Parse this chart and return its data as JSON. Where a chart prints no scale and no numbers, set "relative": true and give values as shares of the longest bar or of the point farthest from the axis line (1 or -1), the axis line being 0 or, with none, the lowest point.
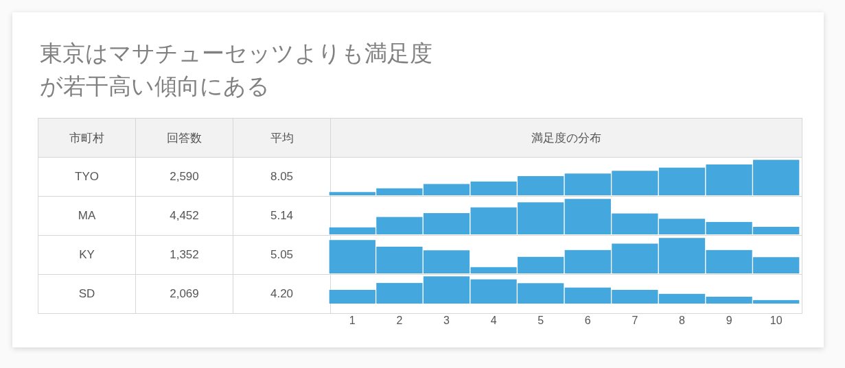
{
  "chart_data": [
    {
      "type": "other",
      "title": "東京はマサチューセッツよりも満足度が若干高い傾向にある",
      "annotations": [
        "市町村",
        "回答数",
        "平均",
        "満足度の分布",
        "TYO",
        "2,590",
        "8.05",
        "MA",
        "4,452",
        "5.14",
        "KY",
        "1,352",
        "5.05",
        "SD",
        "2,069",
        "4.20"
      ]
    },
    {
      "type": "bar",
      "relative": true,
      "tick_labels": false,
      "categories": [
        "1",
        "2",
        "3",
        "4",
        "5",
        "6",
        "7",
        "8",
        "9",
        "10"
      ],
      "color": "#44a7dd",
      "values": [
        0.09,
        0.2,
        0.32,
        0.39,
        0.54,
        0.61,
        0.69,
        0.78,
        0.87,
        1
      ]
    },
    {
      "type": "bar",
      "relative": true,
      "tick_labels": false,
      "categories": [
        "1",
        "2",
        "3",
        "4",
        "5",
        "6",
        "7",
        "8",
        "9",
        "10"
      ],
      "color": "#44a7dd",
      "values": [
        0.2,
        0.49,
        0.6,
        0.76,
        0.9,
        1,
        0.59,
        0.44,
        0.35,
        0.21
      ]
    },
    {
      "type": "bar",
      "relative": true,
      "tick_labels": false,
      "categories": [
        "1",
        "2",
        "3",
        "4",
        "5",
        "6",
        "7",
        "8",
        "9",
        "10"
      ],
      "color": "#44a7dd",
      "values": [
        0.94,
        0.75,
        0.65,
        0.18,
        0.47,
        0.66,
        0.84,
        1,
        0.66,
        0.46
      ]
    },
    {
      "type": "bar",
      "relative": true,
      "tick_labels": "x",
      "categories": [
        "1",
        "2",
        "3",
        "4",
        "5",
        "6",
        "7",
        "8",
        "9",
        "10"
      ],
      "color": "#44a7dd",
      "values": [
        0.5,
        0.76,
        1,
        0.89,
        0.75,
        0.59,
        0.5,
        0.36,
        0.25,
        0.13
      ]
    }
  ]
}
